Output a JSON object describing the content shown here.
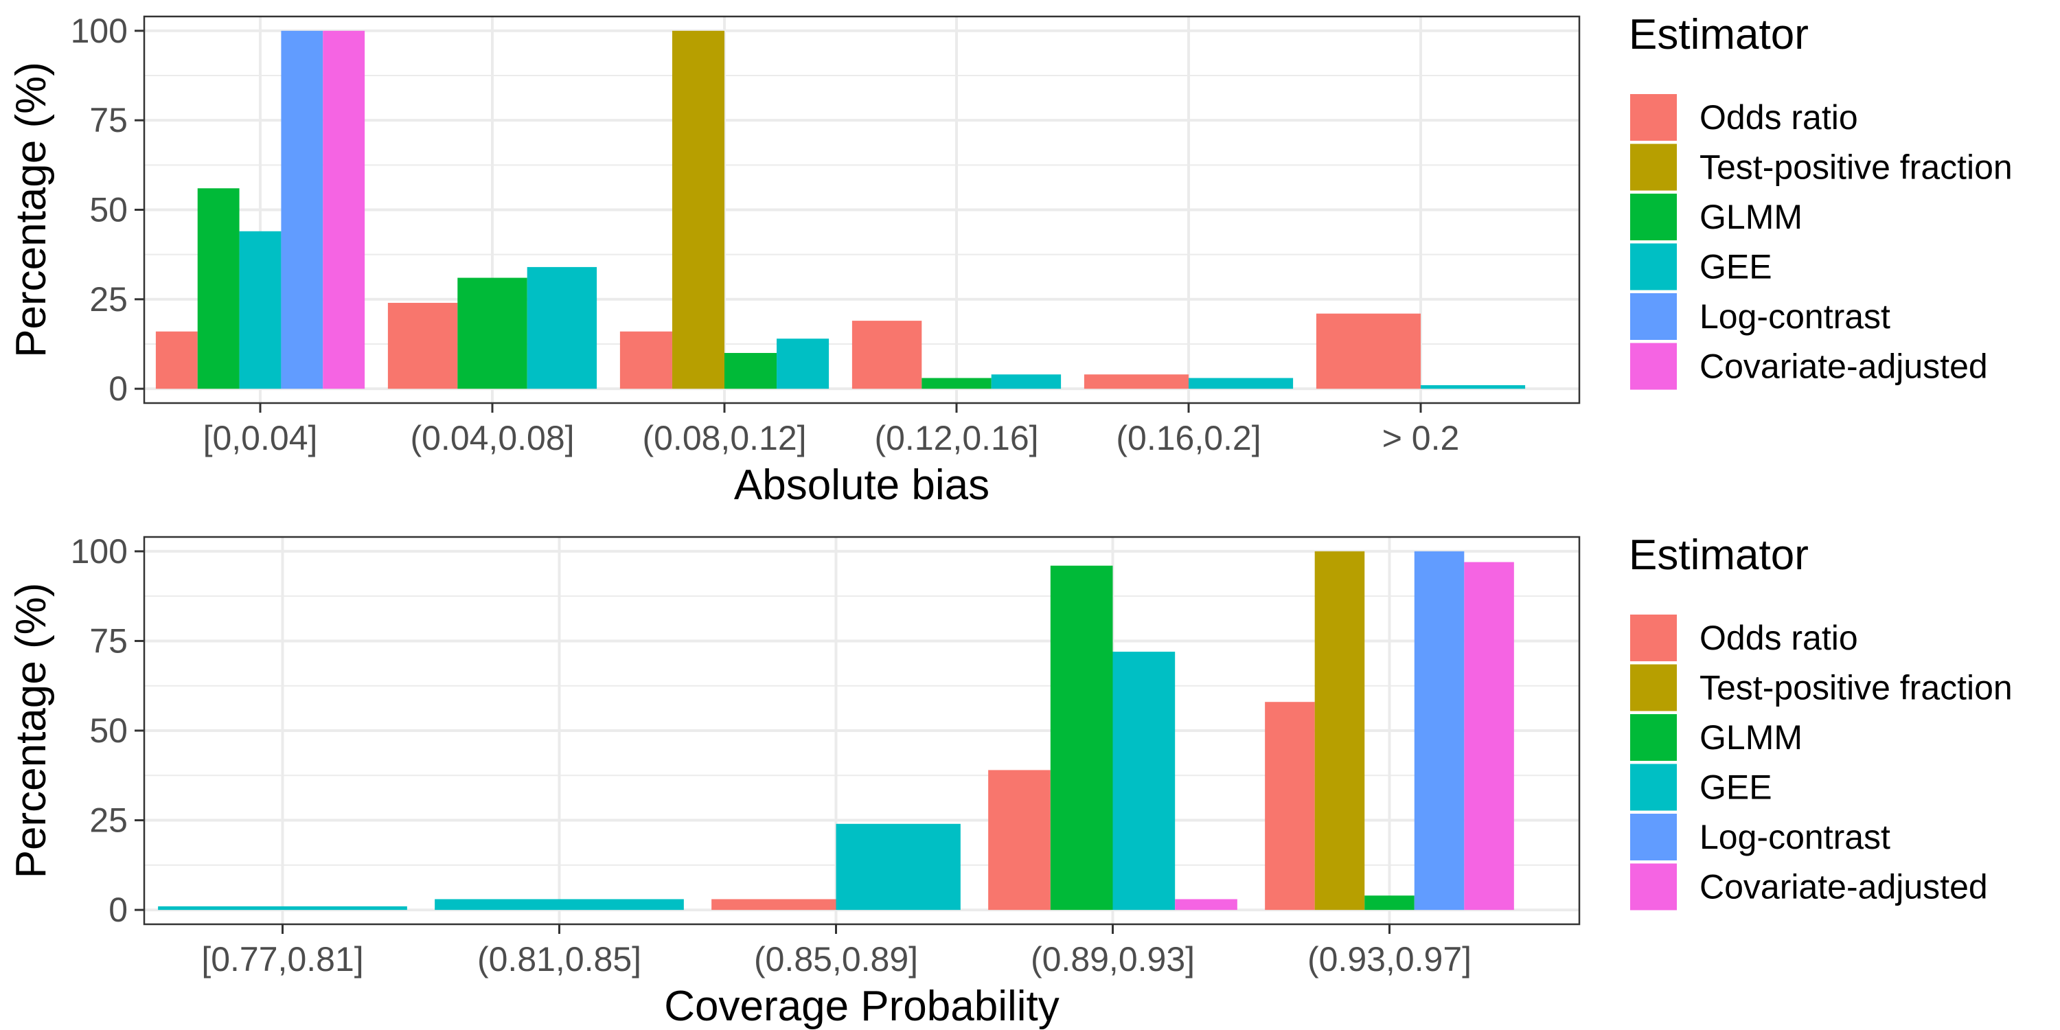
{
  "estimator_colors": {
    "Odds ratio": "#F8766D",
    "Test-positive fraction": "#B79F00",
    "GLMM": "#00BA38",
    "GEE": "#00BFC4",
    "Log-contrast": "#619CFF",
    "Covariate-adjusted": "#F564E3"
  },
  "chart_data": [
    {
      "type": "bar",
      "title": "",
      "xlabel": "Absolute bias",
      "ylabel": "Percentage (%)",
      "ylim": [
        -4,
        104
      ],
      "yticks": [
        0,
        25,
        50,
        75,
        100
      ],
      "grid": true,
      "legend_title": "Estimator",
      "legend_position": "right",
      "categories": [
        "[0,0.04]",
        "(0.04,0.08]",
        "(0.08,0.12]",
        "(0.12,0.16]",
        "(0.16,0.2]",
        "> 0.2"
      ],
      "series": [
        {
          "name": "Odds ratio",
          "values": [
            16,
            24,
            16,
            19,
            4,
            21
          ]
        },
        {
          "name": "Test-positive fraction",
          "values": [
            0,
            0,
            100,
            0,
            0,
            0
          ]
        },
        {
          "name": "GLMM",
          "values": [
            56,
            31,
            10,
            3,
            0,
            0
          ]
        },
        {
          "name": "GEE",
          "values": [
            44,
            34,
            14,
            4,
            3,
            1
          ]
        },
        {
          "name": "Log-contrast",
          "values": [
            100,
            0,
            0,
            0,
            0,
            0
          ]
        },
        {
          "name": "Covariate-adjusted",
          "values": [
            100,
            0,
            0,
            0,
            0,
            0
          ]
        }
      ]
    },
    {
      "type": "bar",
      "title": "",
      "xlabel": "Coverage Probability",
      "ylabel": "Percentage (%)",
      "ylim": [
        -4,
        104
      ],
      "yticks": [
        0,
        25,
        50,
        75,
        100
      ],
      "grid": true,
      "legend_title": "Estimator",
      "legend_position": "right",
      "categories": [
        "[0.77,0.81]",
        "(0.81,0.85]",
        "(0.85,0.89]",
        "(0.89,0.93]",
        "(0.93,0.97]"
      ],
      "series": [
        {
          "name": "Odds ratio",
          "values": [
            0,
            0,
            3,
            39,
            58
          ]
        },
        {
          "name": "Test-positive fraction",
          "values": [
            0,
            0,
            0,
            0,
            100
          ]
        },
        {
          "name": "GLMM",
          "values": [
            0,
            0,
            0,
            96,
            4
          ]
        },
        {
          "name": "GEE",
          "values": [
            1,
            3,
            24,
            72,
            0
          ]
        },
        {
          "name": "Log-contrast",
          "values": [
            0,
            0,
            0,
            0,
            100
          ]
        },
        {
          "name": "Covariate-adjusted",
          "values": [
            0,
            0,
            0,
            3,
            97
          ]
        }
      ]
    }
  ]
}
